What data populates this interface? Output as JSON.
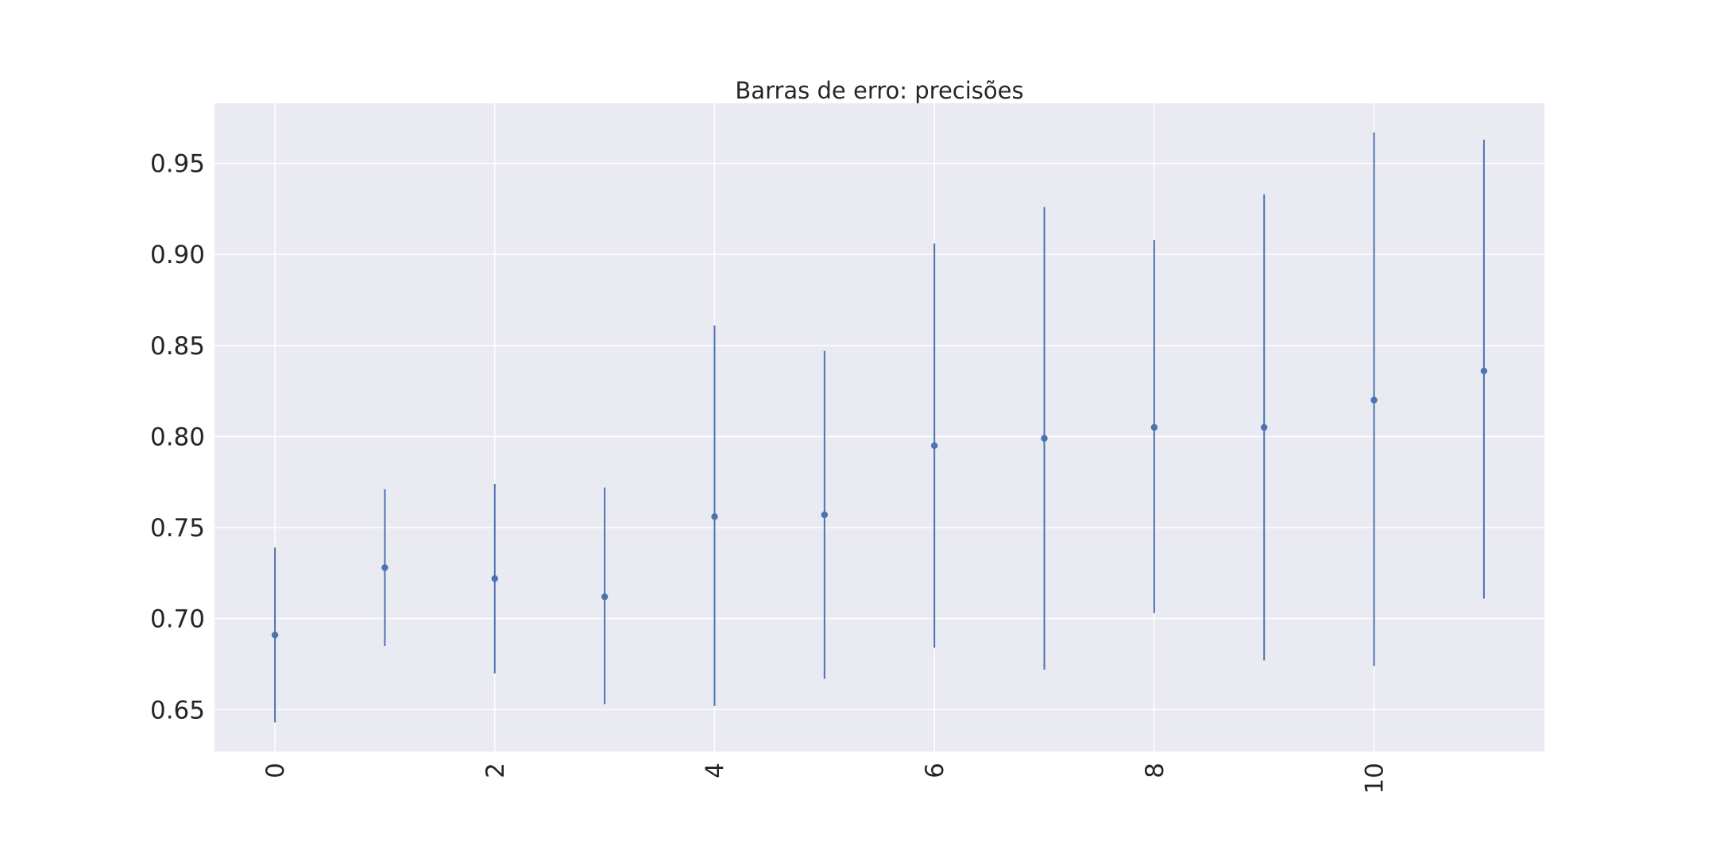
{
  "chart_data": {
    "type": "scatter",
    "title": "Barras de erro: precisões",
    "xlabel": "",
    "ylabel": "",
    "xlim": [
      -0.55,
      11.55
    ],
    "ylim": [
      0.627,
      0.983
    ],
    "x_ticks": [
      0,
      2,
      4,
      6,
      8,
      10
    ],
    "y_ticks": [
      0.65,
      0.7,
      0.75,
      0.8,
      0.85,
      0.9,
      0.95
    ],
    "grid": true,
    "style": "seaborn-darkgrid",
    "colors": {
      "series": "#4c72b0",
      "plot_background": "#eaeaf2",
      "grid": "#ffffff",
      "text": "#262626"
    },
    "series": [
      {
        "x": [
          0,
          1,
          2,
          3,
          4,
          5,
          6,
          7,
          8,
          9,
          10,
          11
        ],
        "y": [
          0.691,
          0.728,
          0.722,
          0.712,
          0.756,
          0.757,
          0.795,
          0.799,
          0.805,
          0.805,
          0.82,
          0.836
        ],
        "y_low": [
          0.643,
          0.685,
          0.67,
          0.653,
          0.652,
          0.667,
          0.684,
          0.672,
          0.703,
          0.677,
          0.674,
          0.711
        ],
        "y_high": [
          0.739,
          0.771,
          0.774,
          0.772,
          0.861,
          0.847,
          0.906,
          0.926,
          0.908,
          0.933,
          0.967,
          0.963
        ]
      }
    ]
  }
}
